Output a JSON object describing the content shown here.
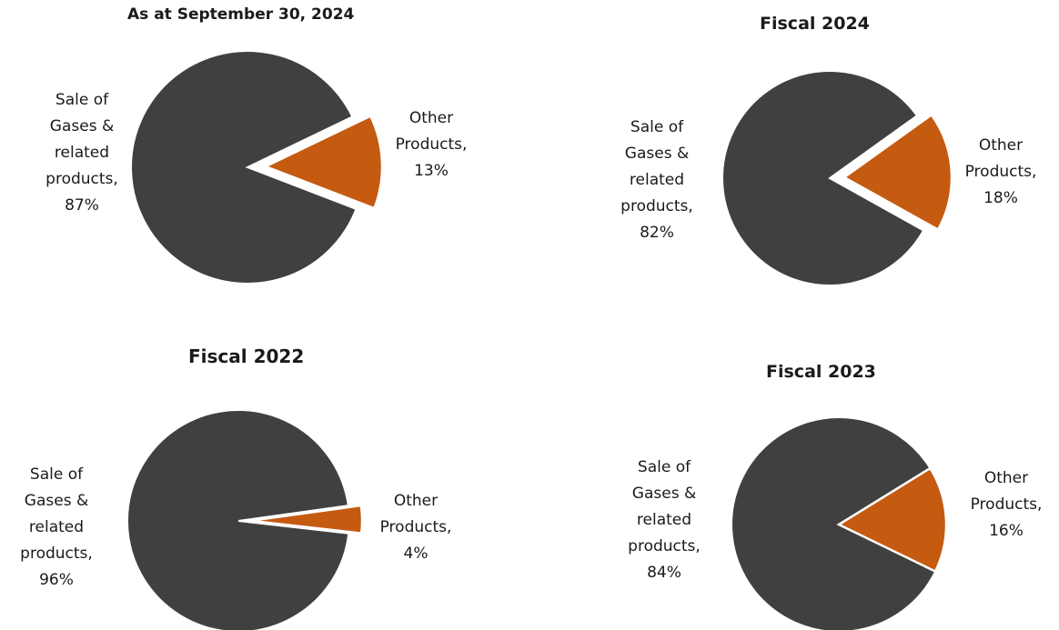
{
  "colors": {
    "major": "#404040",
    "minor": "#c55a11",
    "stroke": "#ffffff"
  },
  "chart_data": [
    {
      "type": "pie",
      "title": "As at September 30, 2024",
      "slices": [
        {
          "label": "Sale of\nGases &\nrelated\nproducts,\n87%",
          "name": "Sale of Gases & related products",
          "value": 87
        },
        {
          "label": "Other\nProducts,\n13%",
          "name": "Other Products",
          "value": 13
        }
      ]
    },
    {
      "type": "pie",
      "title": "Fiscal 2024",
      "slices": [
        {
          "label": "Sale of\nGases &\nrelated\nproducts,\n82%",
          "name": "Sale of Gases & related products",
          "value": 82
        },
        {
          "label": "Other\nProducts,\n18%",
          "name": "Other Products",
          "value": 18
        }
      ]
    },
    {
      "type": "pie",
      "title": "Fiscal 2022",
      "slices": [
        {
          "label": "Sale of\nGases &\nrelated\nproducts,\n96%",
          "name": "Sale of Gases & related products",
          "value": 96
        },
        {
          "label": "Other\nProducts,\n4%",
          "name": "Other Products",
          "value": 4
        }
      ]
    },
    {
      "type": "pie",
      "title": "Fiscal 2023",
      "slices": [
        {
          "label": "Sale of\nGases &\nrelated\nproducts,\n84%",
          "name": "Sale of Gases & related products",
          "value": 84
        },
        {
          "label": "Other\nProducts,\n16%",
          "name": "Other Products",
          "value": 16
        }
      ]
    }
  ]
}
